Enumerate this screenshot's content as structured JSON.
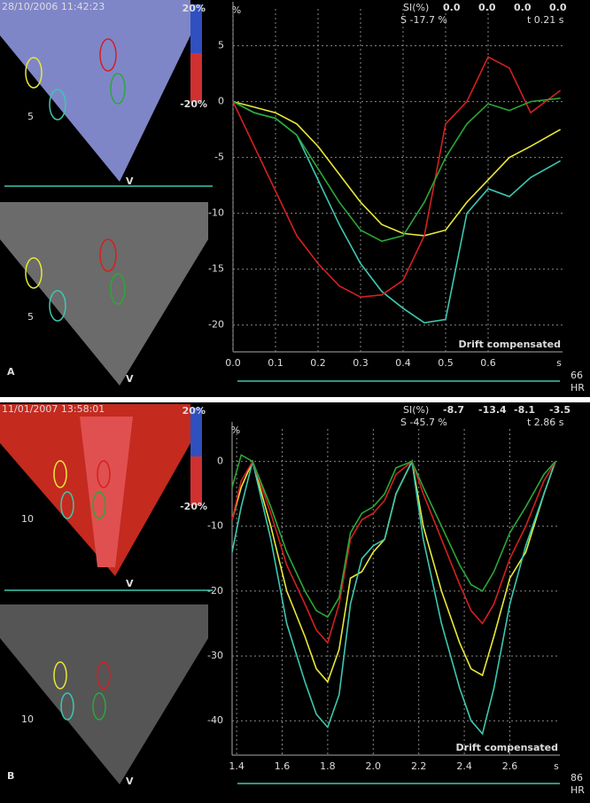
{
  "chart_data": [
    {
      "type": "line",
      "panel": "A",
      "timestamp": "28/10/2006 11:42:23",
      "image_labels": {
        "scale_top": "20%",
        "scale_bottom": "-20%",
        "depth": "5",
        "marker": "V"
      },
      "header": {
        "label": "SI(%)",
        "values": [
          "0.0",
          "0.0",
          "0.0",
          "0.0"
        ],
        "strain": "S -17.7 %",
        "time": "t 0.21 s"
      },
      "y_unit": "%",
      "x_unit": "s",
      "annotation": "Drift compensated",
      "hr": "66",
      "hr_label": "HR",
      "x": [
        0,
        0.05,
        0.1,
        0.15,
        0.2,
        0.25,
        0.3,
        0.35,
        0.4,
        0.45,
        0.5,
        0.55,
        0.6,
        0.65,
        0.7,
        0.77
      ],
      "series": [
        {
          "color": "#e8e838",
          "values": [
            0,
            -0.5,
            -1,
            -2,
            -4,
            -6.5,
            -9,
            -11,
            -11.8,
            -12,
            -11.5,
            -9,
            -7,
            -5,
            -4,
            -2.5
          ]
        },
        {
          "color": "#3cc8b0",
          "values": [
            0,
            -1,
            -1.5,
            -3,
            -7,
            -11,
            -14.5,
            -17,
            -18.5,
            -19.8,
            -19.5,
            -10,
            -7.8,
            -8.5,
            -6.8,
            -5.3
          ]
        },
        {
          "color": "#d42020",
          "values": [
            0,
            -4,
            -8,
            -12,
            -14.5,
            -16.5,
            -17.5,
            -17.3,
            -16,
            -12,
            -2,
            0,
            4,
            3,
            -1,
            1
          ]
        },
        {
          "color": "#2aa838",
          "values": [
            0,
            -1,
            -1.5,
            -3,
            -6,
            -9,
            -11.5,
            -12.5,
            -12,
            -9,
            -5,
            -2,
            -0.2,
            -0.8,
            0,
            0.3
          ]
        }
      ],
      "xlim": [
        0,
        0.775
      ],
      "ylim": [
        -22.4,
        8.3
      ],
      "xticks": [
        {
          "value": 0,
          "label": "0.0"
        },
        0.1,
        0.2,
        0.3,
        0.4,
        0.5,
        0.6
      ],
      "yticks": [
        5,
        0,
        -5,
        -10,
        -15,
        -20
      ],
      "grid": true
    },
    {
      "type": "line",
      "panel": "B",
      "timestamp": "11/01/2007 13:58:01",
      "image_labels": {
        "scale_top": "20%",
        "scale_bottom": "-20%",
        "depth": "10",
        "marker": "V"
      },
      "header": {
        "label": "SI(%)",
        "values": [
          "-8.7",
          "-13.4",
          "-8.1",
          "-3.5"
        ],
        "strain": "S -45.7 %",
        "time": "t 2.86 s"
      },
      "y_unit": "%",
      "x_unit": "s",
      "annotation": "Drift compensated",
      "hr": "86",
      "hr_label": "HR",
      "x": [
        1.38,
        1.42,
        1.47,
        1.55,
        1.62,
        1.7,
        1.75,
        1.8,
        1.85,
        1.9,
        1.95,
        2.0,
        2.05,
        2.1,
        2.17,
        2.22,
        2.3,
        2.38,
        2.43,
        2.48,
        2.53,
        2.6,
        2.67,
        2.75,
        2.8
      ],
      "series": [
        {
          "color": "#e8e838",
          "values": [
            -9,
            -4,
            0,
            -10,
            -20,
            -27,
            -32,
            -34,
            -29,
            -18,
            -17,
            -14,
            -12,
            -5,
            0,
            -10,
            -20,
            -28,
            -32,
            -33,
            -27,
            -18,
            -14,
            -5,
            0
          ]
        },
        {
          "color": "#3cc8b0",
          "values": [
            -14,
            -7,
            0,
            -12,
            -25,
            -34,
            -39,
            -41,
            -36,
            -22,
            -15,
            -13,
            -12,
            -5,
            0,
            -12,
            -25,
            -35,
            -40,
            -42,
            -35,
            -22,
            -13,
            -5,
            0
          ]
        },
        {
          "color": "#d42020",
          "values": [
            -9,
            -3,
            0,
            -8,
            -16,
            -22,
            -26,
            -28,
            -22,
            -12,
            -9,
            -8,
            -6,
            -2,
            0,
            -5,
            -12,
            -19,
            -23,
            -25,
            -22,
            -15,
            -10,
            -3,
            0
          ]
        },
        {
          "color": "#2aa838",
          "values": [
            -4,
            1,
            0,
            -7,
            -14,
            -20,
            -23,
            -24,
            -21,
            -11,
            -8,
            -7,
            -5,
            -1,
            0,
            -4,
            -10,
            -16,
            -19,
            -20,
            -17,
            -11,
            -7,
            -2,
            0
          ]
        }
      ],
      "xlim": [
        1.38,
        2.82
      ],
      "ylim": [
        -45.3,
        5
      ],
      "xticks": [
        1.4,
        1.6,
        1.8,
        {
          "value": 2,
          "label": "2.0"
        },
        2.2,
        2.4,
        2.6
      ],
      "yticks": [
        0,
        -10,
        -20,
        -30,
        -40
      ],
      "grid": true
    }
  ]
}
